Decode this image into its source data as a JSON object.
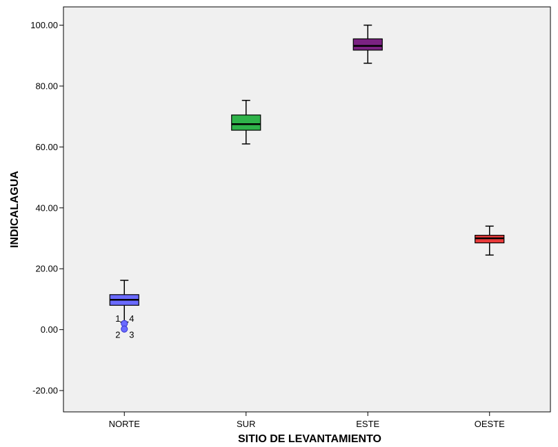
{
  "chart_data": {
    "type": "boxplot",
    "xlabel": "SITIO DE LEVANTAMIENTO",
    "ylabel": "INDICALAGUA",
    "ylim": [
      -27,
      106
    ],
    "yticks": [
      -20,
      0,
      20,
      40,
      60,
      80,
      100
    ],
    "ytick_labels": [
      "-20.00",
      "0.00",
      "20.00",
      "40.00",
      "60.00",
      "80.00",
      "100.00"
    ],
    "background": "#f0f0f0",
    "grid": false,
    "categories": [
      {
        "label": "NORTE",
        "color": "#6a6aff",
        "whisker_low": 2.5,
        "q1": 8.0,
        "median": 9.8,
        "q3": 11.5,
        "whisker_high": 16.2,
        "outliers": [
          {
            "value": 2.0,
            "label": "1"
          },
          {
            "value": 2.0,
            "label": "4"
          },
          {
            "value": 0.2,
            "label": "2"
          },
          {
            "value": 0.2,
            "label": "3"
          }
        ]
      },
      {
        "label": "SUR",
        "color": "#2fb34a",
        "whisker_low": 61.0,
        "q1": 65.5,
        "median": 67.5,
        "q3": 70.5,
        "whisker_high": 75.3,
        "outliers": []
      },
      {
        "label": "ESTE",
        "color": "#7b2282",
        "whisker_low": 87.5,
        "q1": 91.8,
        "median": 93.2,
        "q3": 95.5,
        "whisker_high": 100.0,
        "outliers": []
      },
      {
        "label": "OESTE",
        "color": "#e83a3a",
        "whisker_low": 24.5,
        "q1": 28.5,
        "median": 30.0,
        "q3": 31.0,
        "whisker_high": 34.0,
        "outliers": []
      }
    ]
  }
}
